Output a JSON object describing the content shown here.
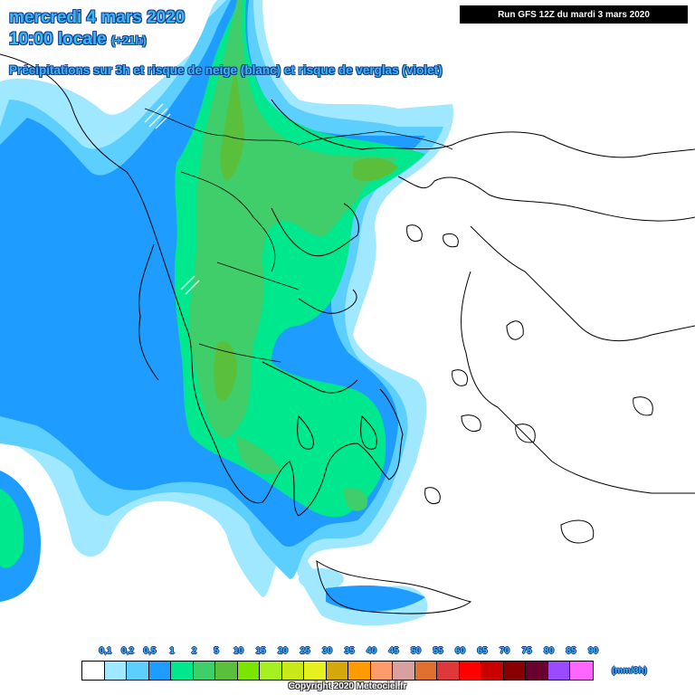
{
  "header": {
    "date_line": "mercredi 4 mars 2020",
    "time_line": "10:00 locale",
    "offset": "(+21h)",
    "description": "Précipitations sur 3h et risque de neige (blanc) et risque de verglas (violet)",
    "run_info": "Run GFS 12Z du mardi 3 mars 2020"
  },
  "legend": {
    "unit": "(mm/3h)",
    "labels": [
      "0,1",
      "0,2",
      "0,5",
      "1",
      "2",
      "5",
      "10",
      "15",
      "20",
      "25",
      "30",
      "35",
      "40",
      "45",
      "50",
      "55",
      "60",
      "65",
      "70",
      "75",
      "80",
      "85",
      "90"
    ],
    "colors": [
      "#ffffff",
      "#a0e8ff",
      "#5ccfff",
      "#1e9cff",
      "#00e88e",
      "#3fce6a",
      "#5abf3b",
      "#7ae600",
      "#a4f021",
      "#c8e819",
      "#e6f01f",
      "#d4a80a",
      "#ff9a00",
      "#ff9a6a",
      "#d8a0a0",
      "#e07030",
      "#e03838",
      "#ff0000",
      "#c80000",
      "#8a0000",
      "#6a0030",
      "#9a4bff",
      "#ff66ff"
    ]
  },
  "footer": {
    "copyright": "Copyright 2020 Meteociel.fr"
  },
  "map": {
    "region": "Greece / Balkans / Aegean",
    "fills": {
      "light_blue": "#a0e8ff",
      "mid_blue": "#5ccfff",
      "blue": "#1e9cff",
      "green": "#00e88e",
      "dark_green": "#3fce6a",
      "olive": "#5abf3b"
    }
  }
}
